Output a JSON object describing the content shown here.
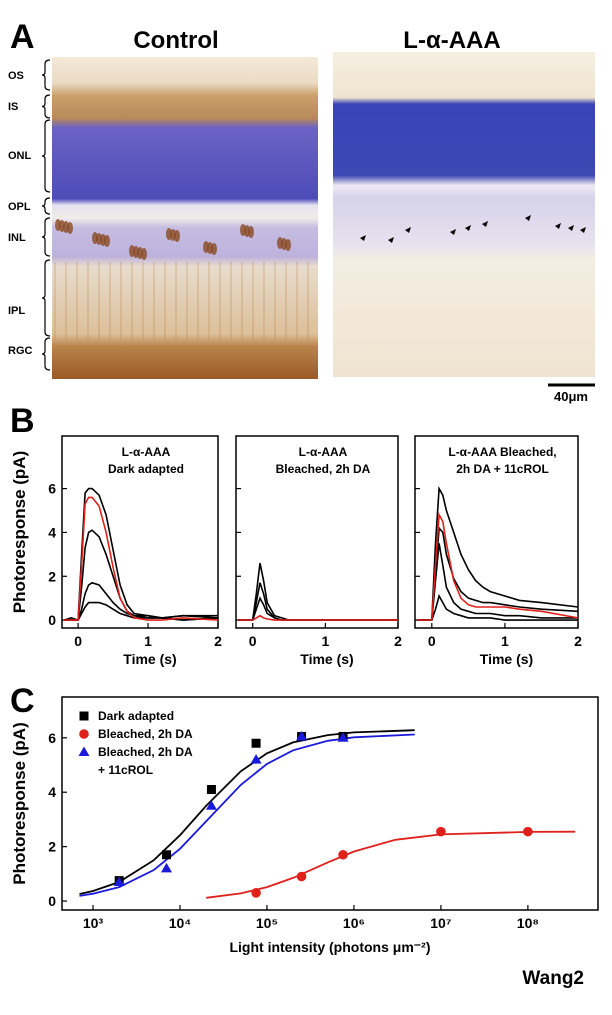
{
  "panel_a": {
    "label": "A",
    "titles": [
      "Control",
      "L-α-AAA"
    ],
    "layers": [
      "OS",
      "IS",
      "ONL",
      "OPL",
      "INL",
      "IPL",
      "RGC"
    ],
    "scale_bar": "40μm"
  },
  "panel_b_label": "B",
  "panel_c_label": "C",
  "footer": "Wang2",
  "chart_data": [
    {
      "type": "line",
      "title": [
        "L-α-AAA",
        "Dark adapted"
      ],
      "xlabel": "Time (s)",
      "ylabel": "Photoresponse (pA)",
      "x": [
        -0.2,
        -0.1,
        0,
        0.05,
        0.1,
        0.15,
        0.2,
        0.3,
        0.4,
        0.5,
        0.6,
        0.7,
        0.8,
        1.0,
        1.2,
        1.5,
        2.0
      ],
      "series": [
        {
          "color": "#000000",
          "values": [
            0,
            0.1,
            0,
            3,
            5.8,
            6,
            6,
            5.7,
            4.8,
            3.2,
            1.6,
            0.7,
            0.3,
            0.2,
            0.1,
            0.2,
            0.2
          ]
        },
        {
          "color": "#000000",
          "values": [
            0,
            0,
            0,
            1.5,
            3.3,
            4.0,
            4.1,
            3.8,
            3.0,
            2.0,
            1.0,
            0.4,
            0.2,
            0.1,
            0.1,
            0,
            0.1
          ]
        },
        {
          "color": "#000000",
          "values": [
            0,
            0,
            0,
            0.5,
            1.2,
            1.6,
            1.7,
            1.6,
            1.2,
            0.8,
            0.5,
            0.3,
            0.2,
            0.2,
            0.1,
            0.2,
            0.1
          ]
        },
        {
          "color": "#000000",
          "values": [
            0,
            0,
            0,
            0.3,
            0.6,
            0.8,
            0.8,
            0.8,
            0.7,
            0.5,
            0.3,
            0.2,
            0.1,
            0.1,
            0.1,
            0,
            0.1
          ]
        },
        {
          "color": "#e0201b",
          "values": [
            0,
            0,
            0,
            2.5,
            5.3,
            5.6,
            5.6,
            5.2,
            4,
            2.4,
            1.0,
            0.4,
            0.1,
            0,
            0,
            0.1,
            0
          ]
        }
      ],
      "xlim": [
        -0.23,
        2
      ],
      "ylim": [
        -0.36,
        8.4
      ],
      "xticks": [
        0,
        1,
        2
      ],
      "yticks": [
        0,
        2,
        4,
        6
      ]
    },
    {
      "type": "line",
      "title": [
        "L-α-AAA",
        "Bleached, 2h DA"
      ],
      "xlabel": "Time (s)",
      "x": [
        -0.2,
        -0.1,
        0,
        0.05,
        0.1,
        0.15,
        0.2,
        0.3,
        0.4,
        0.5,
        0.6,
        0.7,
        0.8,
        1.0,
        1.2,
        1.5,
        2.0
      ],
      "series": [
        {
          "color": "#000000",
          "values": [
            0,
            0,
            0,
            1.2,
            2.6,
            1.8,
            0.8,
            0.2,
            0.1,
            0,
            0,
            0,
            0,
            0,
            0,
            0,
            0
          ]
        },
        {
          "color": "#000000",
          "values": [
            0,
            0,
            0,
            0.8,
            1.7,
            1.2,
            0.5,
            0.1,
            0,
            0,
            0,
            0,
            0,
            0,
            0,
            0,
            0
          ]
        },
        {
          "color": "#000000",
          "values": [
            0,
            0,
            0,
            0.5,
            1.0,
            0.7,
            0.3,
            0.1,
            0,
            0,
            0,
            0,
            0,
            0,
            0,
            0,
            0
          ]
        },
        {
          "color": "#e0201b",
          "values": [
            0,
            0,
            0,
            0.1,
            0.2,
            0.1,
            0.05,
            0,
            0,
            0,
            0,
            0,
            0,
            0,
            0,
            0,
            0
          ]
        }
      ],
      "xlim": [
        -0.23,
        2
      ],
      "ylim": [
        -0.36,
        8.4
      ],
      "xticks": [
        0,
        1,
        2
      ],
      "yticks": [
        0,
        2,
        4,
        6
      ]
    },
    {
      "type": "line",
      "title": [
        "L-α-AAA  Bleached,",
        "2h DA + 11cROL"
      ],
      "xlabel": "Time (s)",
      "x": [
        -0.2,
        -0.1,
        0,
        0.05,
        0.1,
        0.15,
        0.2,
        0.3,
        0.4,
        0.5,
        0.6,
        0.7,
        0.8,
        1.0,
        1.2,
        1.5,
        2.0
      ],
      "series": [
        {
          "color": "#000000",
          "values": [
            0,
            0,
            0,
            3.5,
            6.0,
            5.7,
            5.0,
            4.0,
            3.0,
            2.3,
            1.8,
            1.5,
            1.3,
            1.1,
            0.9,
            0.8,
            0.6
          ]
        },
        {
          "color": "#000000",
          "values": [
            0,
            0,
            0,
            2,
            4.2,
            4.0,
            3.0,
            1.9,
            1.3,
            1.0,
            0.9,
            0.8,
            0.8,
            0.7,
            0.6,
            0.5,
            0.4
          ]
        },
        {
          "color": "#000000",
          "values": [
            0,
            0,
            0,
            1.8,
            3.5,
            2.5,
            1.5,
            0.8,
            0.5,
            0.4,
            0.3,
            0.3,
            0.3,
            0.2,
            0.2,
            0.1,
            0.1
          ]
        },
        {
          "color": "#000000",
          "values": [
            0,
            0,
            0,
            0.5,
            1.1,
            0.8,
            0.5,
            0.3,
            0.2,
            0.1,
            0.1,
            0.1,
            0.1,
            0,
            0,
            0,
            0
          ]
        },
        {
          "color": "#e0201b",
          "values": [
            0,
            0,
            0,
            2.5,
            4.8,
            4.5,
            3.5,
            1.8,
            1.0,
            0.7,
            0.6,
            0.6,
            0.6,
            0.6,
            0.5,
            0.4,
            0.1
          ]
        }
      ],
      "xlim": [
        -0.23,
        2
      ],
      "ylim": [
        -0.36,
        8.4
      ],
      "xticks": [
        0,
        1,
        2
      ],
      "yticks": [
        0,
        2,
        4,
        6
      ]
    },
    {
      "type": "scatter",
      "xlabel": "Light intensity (photons μm⁻²)",
      "ylabel": "Photoresponse (pA)",
      "xscale": "log",
      "series": [
        {
          "name": [
            "Dark adapted"
          ],
          "color": "#000000",
          "marker": "square",
          "x": [
            2000,
            7000,
            23000,
            75000,
            250000,
            750000
          ],
          "values": [
            0.75,
            1.7,
            4.1,
            5.8,
            6.05,
            6.05
          ],
          "fit": {
            "x": [
              700,
              1000,
              2000,
              5000,
              10000,
              20000,
              50000,
              100000,
              200000,
              500000,
              1000000,
              5000000
            ],
            "values": [
              0.26,
              0.37,
              0.7,
              1.5,
              2.42,
              3.5,
              4.77,
              5.43,
              5.83,
              6.1,
              6.2,
              6.28
            ]
          }
        },
        {
          "name": [
            "Bleached, 2h DA"
          ],
          "color": "#e0201b",
          "marker": "circle",
          "x": [
            75000,
            250000,
            750000,
            10000000,
            100000000
          ],
          "values": [
            0.3,
            0.9,
            1.7,
            2.55,
            2.55
          ],
          "fit": {
            "x": [
              20000,
              50000,
              100000,
              200000,
              500000,
              1000000,
              3000000,
              10000000,
              100000000,
              350000000
            ],
            "values": [
              0.12,
              0.28,
              0.51,
              0.85,
              1.42,
              1.82,
              2.25,
              2.45,
              2.54,
              2.55
            ]
          }
        },
        {
          "name": [
            "Bleached, 2h DA",
            "+ 11cROL"
          ],
          "color": "#1a1adb",
          "marker": "triangle",
          "x": [
            2000,
            7000,
            23000,
            75000,
            250000,
            750000
          ],
          "values": [
            0.7,
            1.2,
            3.5,
            5.2,
            6.05,
            6.0
          ],
          "fit": {
            "x": [
              700,
              1000,
              2000,
              5000,
              10000,
              20000,
              50000,
              100000,
              200000,
              500000,
              1000000,
              5000000
            ],
            "values": [
              0.19,
              0.27,
              0.51,
              1.14,
              1.92,
              2.93,
              4.27,
              5.04,
              5.54,
              5.89,
              6.02,
              6.12
            ]
          }
        }
      ],
      "xlim": [
        440,
        640000000
      ],
      "ylim": [
        -0.33,
        7.5
      ],
      "xticks": [
        {
          "value": 1000,
          "label": "10³"
        },
        {
          "value": 10000,
          "label": "10⁴"
        },
        {
          "value": 100000,
          "label": "10⁵"
        },
        {
          "value": 1000000,
          "label": "10⁶"
        },
        {
          "value": 10000000,
          "label": "10⁷"
        },
        {
          "value": 100000000,
          "label": "10⁸"
        }
      ],
      "yticks": [
        0,
        2,
        4,
        6
      ]
    }
  ]
}
